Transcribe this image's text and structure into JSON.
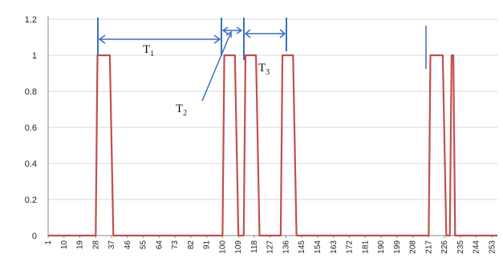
{
  "chart_data": {
    "type": "line",
    "title": "",
    "xlabel": "",
    "ylabel": "",
    "xlim": [
      1,
      256
    ],
    "ylim": [
      0,
      1.2
    ],
    "grid": true,
    "legend": "none",
    "line_color": "#c0504d",
    "y_ticks": [
      "0",
      "0.2",
      "0.4",
      "0.6",
      "0.8",
      "1",
      "1.2"
    ],
    "x_tick_labels": [
      "1",
      "10",
      "19",
      "28",
      "37",
      "46",
      "55",
      "64",
      "73",
      "82",
      "91",
      "100",
      "109",
      "118",
      "127",
      "136",
      "145",
      "154",
      "163",
      "172",
      "181",
      "190",
      "199",
      "208",
      "217",
      "226",
      "235",
      "244",
      "253"
    ],
    "series": [
      {
        "x": [
          1,
          28,
          29,
          31,
          36,
          38,
          100,
          101,
          103,
          107,
          109,
          112,
          113,
          115,
          119,
          121,
          133,
          134,
          136,
          140,
          142,
          217,
          218,
          220,
          225,
          227,
          229,
          230,
          231,
          232,
          256
        ],
        "y": [
          0,
          0,
          1,
          1,
          1,
          0,
          0,
          1,
          1,
          1,
          0,
          0,
          1,
          1,
          1,
          0,
          0,
          1,
          1,
          1,
          0,
          0,
          1,
          1,
          1,
          0,
          0,
          1,
          1,
          0,
          0
        ]
      }
    ],
    "annotations": [
      {
        "label": "T",
        "sub": "1"
      },
      {
        "label": "T",
        "sub": "2"
      },
      {
        "label": "T",
        "sub": "3"
      }
    ]
  }
}
